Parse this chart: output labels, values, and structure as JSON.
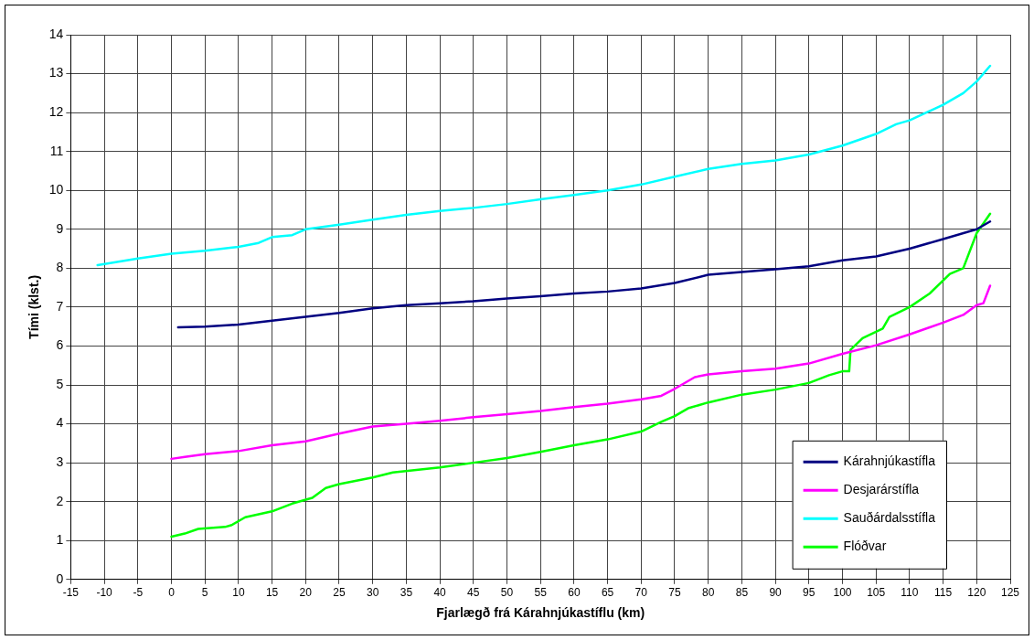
{
  "chart_data": {
    "type": "line",
    "xlabel": "Fjarlægð frá Kárahnjúkastíflu (km)",
    "ylabel": "Tími (klst.)",
    "xlim": [
      -15,
      125
    ],
    "xticks": [
      -15,
      -10,
      -5,
      0,
      5,
      10,
      15,
      20,
      25,
      30,
      35,
      40,
      45,
      50,
      55,
      60,
      65,
      70,
      75,
      80,
      85,
      90,
      95,
      100,
      105,
      110,
      115,
      120,
      125
    ],
    "ylim": [
      0,
      14
    ],
    "yticks": [
      0,
      1,
      2,
      3,
      4,
      5,
      6,
      7,
      8,
      9,
      10,
      11,
      12,
      13,
      14
    ],
    "grid": true,
    "legend": "bottom right",
    "marker": "none",
    "line_style": "solid",
    "series": [
      {
        "name": "Kárahnjúkastífla",
        "color": "#000080",
        "x": [
          1,
          5,
          10,
          15,
          20,
          25,
          30,
          35,
          40,
          45,
          50,
          55,
          60,
          65,
          70,
          75,
          80,
          85,
          90,
          95,
          100,
          105,
          110,
          115,
          120,
          122
        ],
        "values": [
          6.48,
          6.5,
          6.55,
          6.65,
          6.75,
          6.85,
          6.97,
          7.05,
          7.1,
          7.15,
          7.22,
          7.28,
          7.35,
          7.4,
          7.48,
          7.62,
          7.83,
          7.9,
          7.97,
          8.05,
          8.2,
          8.3,
          8.5,
          8.75,
          9.0,
          9.2
        ]
      },
      {
        "name": "Desjarárstífla",
        "color": "#ff00ff",
        "x": [
          0,
          2,
          5,
          10,
          15,
          20,
          25,
          30,
          35,
          40,
          45,
          50,
          55,
          60,
          65,
          70,
          73,
          75,
          78,
          80,
          85,
          90,
          95,
          100,
          105,
          110,
          115,
          118,
          120,
          121,
          122
        ],
        "values": [
          3.1,
          3.15,
          3.22,
          3.3,
          3.45,
          3.55,
          3.75,
          3.93,
          4.0,
          4.08,
          4.17,
          4.25,
          4.33,
          4.43,
          4.52,
          4.63,
          4.72,
          4.9,
          5.2,
          5.27,
          5.35,
          5.42,
          5.55,
          5.8,
          6.02,
          6.3,
          6.6,
          6.8,
          7.05,
          7.1,
          7.55
        ]
      },
      {
        "name": "Sauðárdalsstífla",
        "color": "#00ffff",
        "x": [
          -11,
          -5,
          0,
          5,
          10,
          13,
          15,
          18,
          20,
          25,
          30,
          35,
          40,
          45,
          50,
          55,
          60,
          65,
          70,
          75,
          80,
          85,
          90,
          95,
          100,
          105,
          108,
          110,
          115,
          118,
          120,
          122
        ],
        "values": [
          8.08,
          8.25,
          8.37,
          8.45,
          8.55,
          8.65,
          8.8,
          8.85,
          9.0,
          9.12,
          9.25,
          9.37,
          9.47,
          9.55,
          9.65,
          9.77,
          9.88,
          10.0,
          10.15,
          10.35,
          10.55,
          10.68,
          10.77,
          10.92,
          11.15,
          11.45,
          11.7,
          11.8,
          12.2,
          12.5,
          12.8,
          13.2
        ]
      },
      {
        "name": "Flóðvar",
        "color": "#00ff00",
        "x": [
          0,
          2,
          4,
          8,
          9,
          11,
          15,
          18,
          21,
          23,
          25,
          30,
          33,
          40,
          45,
          50,
          55,
          60,
          65,
          70,
          73,
          75,
          77,
          80,
          85,
          90,
          95,
          98,
          100,
          101,
          101.2,
          103,
          106,
          107,
          110,
          113,
          116,
          118,
          120,
          122
        ],
        "values": [
          1.1,
          1.18,
          1.3,
          1.35,
          1.4,
          1.6,
          1.75,
          1.95,
          2.1,
          2.35,
          2.45,
          2.62,
          2.75,
          2.88,
          3.0,
          3.12,
          3.28,
          3.45,
          3.6,
          3.8,
          4.05,
          4.2,
          4.4,
          4.55,
          4.75,
          4.88,
          5.05,
          5.25,
          5.35,
          5.35,
          5.9,
          6.2,
          6.45,
          6.75,
          7.0,
          7.35,
          7.85,
          8.0,
          8.9,
          9.4
        ]
      }
    ]
  }
}
